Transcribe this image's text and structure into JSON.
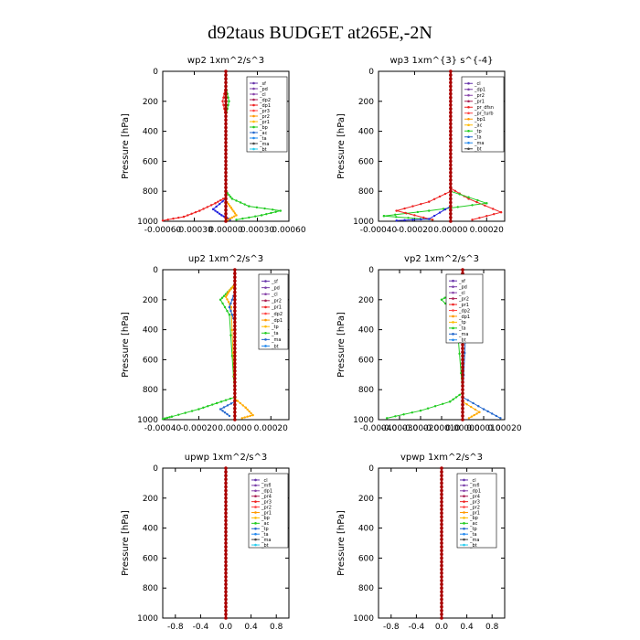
{
  "title": "d92taus  BUDGET at265E,-2N",
  "chart_data": [
    {
      "type": "line",
      "title": "wp2   1xm^2/s^3",
      "ylabel": "Pressure  [hPa]",
      "xlim": [
        -0.0006,
        0.0006
      ],
      "ylim": [
        1000,
        0
      ],
      "xticks": [
        "-0.00060",
        "-0.00030",
        "0.00000",
        "0.00030",
        "0.00060"
      ],
      "xtick_values": [
        -0.0006,
        -0.0003,
        0,
        0.0003,
        0.0006
      ],
      "yticks": [
        "0",
        "200",
        "400",
        "600",
        "800",
        "1000"
      ],
      "ytick_values": [
        0,
        200,
        400,
        600,
        800,
        1000
      ],
      "legend": [
        "_sf",
        "_pd",
        "_cl",
        "_dp2",
        "_dp1",
        "_pr3",
        "_pr2",
        "_pr1",
        "_bp",
        "_ac",
        "_ta",
        "_ma",
        "_bt"
      ],
      "series": [
        {
          "name": "_pr1",
          "color": "#22cc22",
          "points": [
            [
              0,
              100
            ],
            [
              3e-05,
              200
            ],
            [
              0,
              300
            ],
            [
              0,
              800
            ],
            [
              6e-05,
              850
            ],
            [
              0.00022,
              900
            ],
            [
              0.00052,
              930
            ],
            [
              0.00034,
              960
            ],
            [
              0.0001,
              990
            ]
          ]
        },
        {
          "name": "_dp1",
          "color": "#ee2222",
          "points": [
            [
              0,
              100
            ],
            [
              -3e-05,
              200
            ],
            [
              0,
              300
            ],
            [
              0,
              840
            ],
            [
              -0.0001,
              880
            ],
            [
              -0.00025,
              930
            ],
            [
              -0.0004,
              970
            ],
            [
              -0.0006,
              995
            ]
          ]
        },
        {
          "name": "_ac",
          "color": "#2222dd",
          "points": [
            [
              0,
              850
            ],
            [
              -0.00012,
              920
            ],
            [
              -4e-05,
              960
            ],
            [
              4e-05,
              990
            ]
          ]
        },
        {
          "name": "_pr3",
          "color": "#ffaa00",
          "points": [
            [
              0,
              860
            ],
            [
              5e-05,
              910
            ],
            [
              0.0001,
              960
            ],
            [
              2e-05,
              990
            ]
          ]
        },
        {
          "name": "_bt",
          "color": "#aa0000",
          "points": [
            [
              0,
              0
            ],
            [
              0,
              1000
            ]
          ]
        }
      ]
    },
    {
      "type": "line",
      "title": "wp3   1xm^{3} s^{-4}",
      "ylabel": "Pressure  [hPa]",
      "xlim": [
        -0.0004,
        0.0003
      ],
      "ylim": [
        1000,
        0
      ],
      "xticks": [
        "-0.00040",
        "-0.00020",
        "0.00000",
        "0.00020"
      ],
      "xtick_values": [
        -0.0004,
        -0.0002,
        0,
        0.0002
      ],
      "yticks": [
        "0",
        "200",
        "400",
        "600",
        "800",
        "1000"
      ],
      "ytick_values": [
        0,
        200,
        400,
        600,
        800,
        1000
      ],
      "legend": [
        "_cl",
        "_dp1",
        "_pr2",
        "_pr1",
        "_pr_dfsn",
        "_pr_turb",
        "_bp1",
        "_ac",
        "_tp",
        "_ta",
        "_ma",
        "_bt"
      ],
      "series": [
        {
          "name": "_pr1",
          "color": "#ee2222",
          "points": [
            [
              0,
              780
            ],
            [
              0.0001,
              850
            ],
            [
              0.00028,
              940
            ],
            [
              0.00012,
              990
            ]
          ]
        },
        {
          "name": "_bp1",
          "color": "#22cc22",
          "points": [
            [
              0,
              800
            ],
            [
              0.0002,
              880
            ],
            [
              -0.00012,
              930
            ],
            [
              -0.00037,
              965
            ],
            [
              -0.0001,
              990
            ]
          ]
        },
        {
          "name": "_dp1",
          "color": "#ee2222",
          "points": [
            [
              0,
              800
            ],
            [
              -0.00012,
              870
            ],
            [
              -0.0003,
              930
            ],
            [
              -0.0001,
              990
            ]
          ]
        },
        {
          "name": "_ac",
          "color": "#2222dd",
          "points": [
            [
              0,
              900
            ],
            [
              -0.00012,
              985
            ],
            [
              -0.0003,
              995
            ]
          ]
        },
        {
          "name": "_bt",
          "color": "#aa0000",
          "points": [
            [
              0,
              0
            ],
            [
              0,
              1000
            ]
          ]
        }
      ]
    },
    {
      "type": "line",
      "title": "up2   1xm^2/s^3",
      "ylabel": "Pressure  [hPa]",
      "xlim": [
        -0.0004,
        0.0003
      ],
      "ylim": [
        1000,
        0
      ],
      "xticks": [
        "-0.00040",
        "-0.00020",
        "0.00000",
        "0.00020"
      ],
      "xtick_values": [
        -0.0004,
        -0.0002,
        0,
        0.0002
      ],
      "yticks": [
        "0",
        "200",
        "400",
        "600",
        "800",
        "1000"
      ],
      "ytick_values": [
        0,
        200,
        400,
        600,
        800,
        1000
      ],
      "legend": [
        "_sf",
        "_pd",
        "_cl",
        "_pr2",
        "_pr1",
        "_dp2",
        "_dp1",
        "_tp",
        "_ta",
        "_ma",
        "_bt"
      ],
      "series": [
        {
          "name": "_dp1",
          "color": "#22cc22",
          "points": [
            [
              0,
              100
            ],
            [
              -4e-05,
              150
            ],
            [
              -8e-05,
              200
            ],
            [
              -3e-05,
              300
            ],
            [
              0,
              850
            ],
            [
              -0.0001,
              890
            ],
            [
              -0.0002,
              930
            ],
            [
              -0.00035,
              980
            ],
            [
              -0.0004,
              995
            ]
          ]
        },
        {
          "name": "_pr1",
          "color": "#ffaa00",
          "points": [
            [
              0,
              100
            ],
            [
              -3e-05,
              140
            ],
            [
              -5e-05,
              180
            ],
            [
              -2e-05,
              250
            ],
            [
              0,
              860
            ],
            [
              6e-05,
              920
            ],
            [
              0.0001,
              970
            ],
            [
              4e-05,
              990
            ]
          ]
        },
        {
          "name": "_dp2",
          "color": "#2266cc",
          "points": [
            [
              0,
              150
            ],
            [
              -3e-05,
              250
            ],
            [
              0,
              350
            ],
            [
              0,
              880
            ],
            [
              -8e-05,
              930
            ],
            [
              -3e-05,
              975
            ]
          ]
        },
        {
          "name": "_bt",
          "color": "#aa0000",
          "points": [
            [
              0,
              0
            ],
            [
              0,
              1000
            ]
          ]
        }
      ]
    },
    {
      "type": "line",
      "title": "vp2   1xm^2/s^3",
      "ylabel": "Pressure  [hPa]",
      "xlim": [
        -0.0004,
        0.0002
      ],
      "ylim": [
        1000,
        0
      ],
      "xticks": [
        "-0.00040",
        "-0.00030",
        "-0.00020",
        "-0.00010",
        "0.00000",
        "0.00010",
        "0.00020"
      ],
      "xtick_values": [
        -0.0004,
        -0.0003,
        -0.0002,
        -0.0001,
        0,
        0.0001,
        0.0002
      ],
      "yticks": [
        "0",
        "200",
        "400",
        "600",
        "800",
        "1000"
      ],
      "ytick_values": [
        0,
        200,
        400,
        600,
        800,
        1000
      ],
      "legend": [
        "_sf",
        "_pd",
        "_cl",
        "_pr2",
        "_pr1",
        "_dp2",
        "_dp1",
        "_tp",
        "_ta",
        "_ma",
        "_bt"
      ],
      "series": [
        {
          "name": "_dp1",
          "color": "#22cc22",
          "points": [
            [
              0,
              100
            ],
            [
              -4e-05,
              150
            ],
            [
              -0.0001,
              200
            ],
            [
              -3e-05,
              300
            ],
            [
              0,
              820
            ],
            [
              -6e-05,
              880
            ],
            [
              -0.0002,
              940
            ],
            [
              -0.00036,
              990
            ]
          ]
        },
        {
          "name": "_pr1",
          "color": "#2266cc",
          "points": [
            [
              0,
              100
            ],
            [
              3e-05,
              160
            ],
            [
              8e-05,
              200
            ],
            [
              2e-05,
              260
            ],
            [
              0,
              850
            ],
            [
              0.0001,
              930
            ],
            [
              0.00018,
              990
            ]
          ]
        },
        {
          "name": "_pr2",
          "color": "#ffaa00",
          "points": [
            [
              0,
              880
            ],
            [
              8e-05,
              950
            ],
            [
              3e-05,
              990
            ]
          ]
        },
        {
          "name": "_bt",
          "color": "#aa0000",
          "points": [
            [
              0,
              0
            ],
            [
              0,
              1000
            ]
          ]
        }
      ]
    },
    {
      "type": "line",
      "title": "upwp   1xm^2/s^3",
      "ylabel": "Pressure  [hPa]",
      "xlim": [
        -1.0,
        1.0
      ],
      "ylim": [
        1000,
        0
      ],
      "xticks": [
        "-0.8",
        "-0.4",
        "0.0",
        "0.4",
        "0.8"
      ],
      "xtick_values": [
        -0.8,
        -0.4,
        0,
        0.4,
        0.8
      ],
      "yticks": [
        "0",
        "200",
        "400",
        "600",
        "800",
        "1000"
      ],
      "ytick_values": [
        0,
        200,
        400,
        600,
        800,
        1000
      ],
      "legend": [
        "_cl",
        "_mfl",
        "_dp1",
        "_pr4",
        "_pr3",
        "_pr2",
        "_pr1",
        "_bp",
        "_ac",
        "_tp",
        "_ta",
        "_ma",
        "_bt"
      ],
      "series": [
        {
          "name": "_bt",
          "color": "#aa0000",
          "points": [
            [
              0,
              0
            ],
            [
              0,
              1000
            ]
          ]
        }
      ]
    },
    {
      "type": "line",
      "title": "vpwp   1xm^2/s^3",
      "ylabel": "Pressure  [hPa]",
      "xlim": [
        -1.0,
        1.0
      ],
      "ylim": [
        1000,
        0
      ],
      "xticks": [
        "-0.8",
        "-0.4",
        "0.0",
        "0.4",
        "0.8"
      ],
      "xtick_values": [
        -0.8,
        -0.4,
        0,
        0.4,
        0.8
      ],
      "yticks": [
        "0",
        "200",
        "400",
        "600",
        "800",
        "1000"
      ],
      "ytick_values": [
        0,
        200,
        400,
        600,
        800,
        1000
      ],
      "legend": [
        "_cl",
        "_mfl",
        "_dp1",
        "_pr4",
        "_pr3",
        "_pr2",
        "_pr1",
        "_bp",
        "_ac",
        "_tp",
        "_ta",
        "_ma",
        "_bt"
      ],
      "series": [
        {
          "name": "_bt",
          "color": "#aa0000",
          "points": [
            [
              0,
              0
            ],
            [
              0,
              1000
            ]
          ]
        }
      ]
    }
  ],
  "legend_colors": [
    "#6633aa",
    "#7a3fa8",
    "#8844aa",
    "#aa2255",
    "#ee2222",
    "#ff4444",
    "#ff9900",
    "#ffbb00",
    "#22cc22",
    "#2266cc",
    "#2288ee",
    "#444444",
    "#22ccee"
  ]
}
